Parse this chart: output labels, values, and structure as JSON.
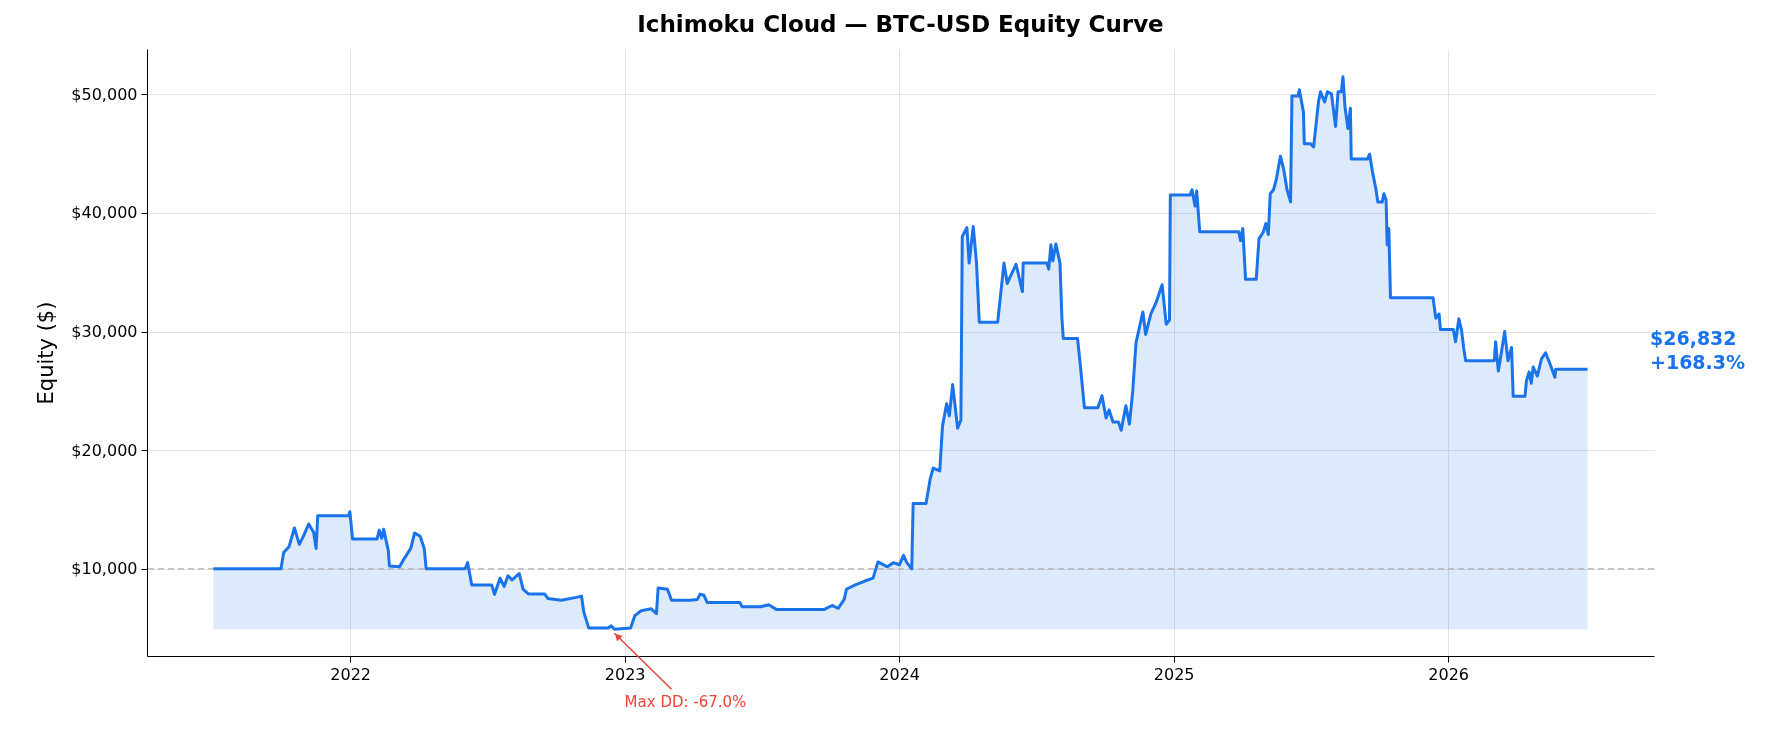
{
  "chart_data": {
    "type": "area",
    "title": "Ichimoku Cloud — BTC-USD Equity Curve",
    "ylabel": "Equity ($)",
    "xlim": [
      2021.26,
      2026.75
    ],
    "xticks": [
      2022,
      2023,
      2024,
      2025,
      2026
    ],
    "ylim": [
      2650,
      53820
    ],
    "yticks": [
      {
        "value": 10000,
        "label": "$10,000"
      },
      {
        "value": 20000,
        "label": "$20,000"
      },
      {
        "value": 30000,
        "label": "$30,000"
      },
      {
        "value": 40000,
        "label": "$40,000"
      },
      {
        "value": 50000,
        "label": "$50,000"
      }
    ],
    "grid": true,
    "ref_lines": [
      {
        "axis": "y",
        "value": 10000,
        "color": "#b0b0b0",
        "line_style": "dashed"
      }
    ],
    "annotations": [
      {
        "text": "Max DD: -67.0%",
        "x": 2022.963,
        "y": 4910
      },
      "$26,832\n+168.3%"
    ],
    "series": [
      {
        "color": "#1a73e8",
        "x": [
          2021.502,
          2021.748,
          2021.758,
          2021.778,
          2021.797,
          2021.815,
          2021.83,
          2021.849,
          2021.867,
          2021.876,
          2021.882,
          2021.994,
          2021.999,
          2022.009,
          2022.098,
          2022.106,
          2022.115,
          2022.122,
          2022.139,
          2022.143,
          2022.18,
          2022.195,
          2022.221,
          2022.235,
          2022.255,
          2022.27,
          2022.277,
          2022.419,
          2022.428,
          2022.443,
          2022.516,
          2022.526,
          2022.546,
          2022.561,
          2022.575,
          2022.59,
          2022.616,
          2022.63,
          2022.65,
          2022.709,
          2022.721,
          2022.769,
          2022.824,
          2022.843,
          2022.851,
          2022.869,
          2022.94,
          2022.951,
          2022.963,
          2023.022,
          2023.037,
          2023.06,
          2023.097,
          2023.116,
          2023.122,
          2023.156,
          2023.171,
          2023.238,
          2023.265,
          2023.275,
          2023.289,
          2023.301,
          2023.42,
          2023.428,
          2023.495,
          2023.525,
          2023.554,
          2023.726,
          2023.756,
          2023.778,
          2023.8,
          2023.808,
          2023.838,
          2023.875,
          2023.905,
          2023.923,
          2023.957,
          2023.979,
          2024.001,
          2024.016,
          2024.028,
          2024.046,
          2024.051,
          2024.098,
          2024.113,
          2024.124,
          2024.148,
          2024.158,
          2024.173,
          2024.183,
          2024.195,
          2024.213,
          2024.225,
          2024.23,
          2024.247,
          2024.255,
          2024.27,
          2024.282,
          2024.292,
          2024.359,
          2024.382,
          2024.394,
          2024.407,
          2024.426,
          2024.449,
          2024.452,
          2024.538,
          2024.545,
          2024.553,
          2024.56,
          2024.571,
          2024.586,
          2024.593,
          2024.598,
          2024.65,
          2024.66,
          2024.675,
          2024.724,
          2024.739,
          2024.754,
          2024.765,
          2024.779,
          2024.799,
          2024.809,
          2024.826,
          2024.839,
          2024.851,
          2024.863,
          2024.888,
          2024.898,
          2024.917,
          2024.937,
          2024.958,
          2024.973,
          2024.985,
          2024.988,
          2025.06,
          2025.067,
          2025.078,
          2025.084,
          2025.095,
          2025.237,
          2025.244,
          2025.252,
          2025.262,
          2025.301,
          2025.311,
          2025.326,
          2025.336,
          2025.345,
          2025.352,
          2025.364,
          2025.374,
          2025.389,
          2025.401,
          2025.413,
          2025.426,
          2025.431,
          2025.453,
          2025.458,
          2025.473,
          2025.476,
          2025.498,
          2025.51,
          2025.528,
          2025.535,
          2025.55,
          2025.56,
          2025.575,
          2025.59,
          2025.599,
          2025.611,
          2025.617,
          2025.624,
          2025.635,
          2025.644,
          2025.647,
          2025.706,
          2025.714,
          2025.724,
          2025.736,
          2025.744,
          2025.76,
          2025.766,
          2025.774,
          2025.778,
          2025.784,
          2025.79,
          2025.945,
          2025.955,
          2025.967,
          2025.972,
          2026.019,
          2026.027,
          2026.039,
          2026.049,
          2026.057,
          2026.064,
          2026.168,
          2026.173,
          2026.183,
          2026.195,
          2026.206,
          2026.218,
          2026.231,
          2026.237,
          2026.28,
          2026.285,
          2026.295,
          2026.303,
          2026.31,
          2026.325,
          2026.34,
          2026.355,
          2026.37,
          2026.389,
          2026.392,
          2026.508
        ],
        "values": [
          10000,
          10000,
          11370,
          11890,
          13440,
          12060,
          12750,
          13780,
          13090,
          11720,
          14470,
          14470,
          14810,
          12510,
          12510,
          13260,
          12580,
          13330,
          11550,
          10240,
          10170,
          10790,
          11720,
          13020,
          12750,
          11720,
          10000,
          10000,
          10520,
          8630,
          8630,
          7840,
          9210,
          8520,
          9420,
          9070,
          9590,
          8280,
          7870,
          7870,
          7490,
          7350,
          7590,
          7700,
          6390,
          5020,
          5020,
          5190,
          4910,
          5020,
          6050,
          6460,
          6630,
          6220,
          8380,
          8280,
          7350,
          7350,
          7420,
          7870,
          7770,
          7150,
          7150,
          6800,
          6800,
          6970,
          6560,
          6560,
          6910,
          6670,
          7420,
          8280,
          8630,
          8970,
          9210,
          10580,
          10170,
          10520,
          10340,
          11130,
          10520,
          10000,
          15500,
          15500,
          17560,
          18490,
          18250,
          22030,
          23920,
          22890,
          25530,
          21860,
          22540,
          38010,
          38760,
          35770,
          38860,
          35770,
          30790,
          30790,
          35770,
          34050,
          34740,
          35670,
          33370,
          35770,
          35770,
          35260,
          37320,
          35940,
          37390,
          35770,
          31130,
          29420,
          29420,
          27180,
          23570,
          23570,
          24600,
          22710,
          23400,
          22370,
          22370,
          21680,
          23750,
          22200,
          24950,
          29070,
          31650,
          29760,
          31480,
          32510,
          33950,
          30620,
          30960,
          41510,
          41510,
          41960,
          40580,
          41860,
          38420,
          38420,
          37660,
          38690,
          34400,
          34400,
          37840,
          38350,
          39110,
          38180,
          41620,
          41960,
          42820,
          44780,
          43680,
          41960,
          40930,
          49860,
          49860,
          50380,
          48490,
          45840,
          45840,
          45570,
          49420,
          50210,
          49350,
          50210,
          50040,
          47290,
          50210,
          50210,
          51480,
          49000,
          47110,
          48830,
          44540,
          44540,
          44950,
          43510,
          42130,
          40930,
          40930,
          41620,
          41100,
          37320,
          38690,
          32850,
          32850,
          31130,
          31480,
          30170,
          30170,
          29140,
          31070,
          30100,
          28560,
          27530,
          27530,
          29140,
          26670,
          28380,
          30000,
          27530,
          28660,
          24540,
          24540,
          25810,
          26600,
          25640,
          27010,
          26250,
          27700,
          28210,
          27350,
          26150,
          26830,
          26832
        ]
      }
    ]
  }
}
